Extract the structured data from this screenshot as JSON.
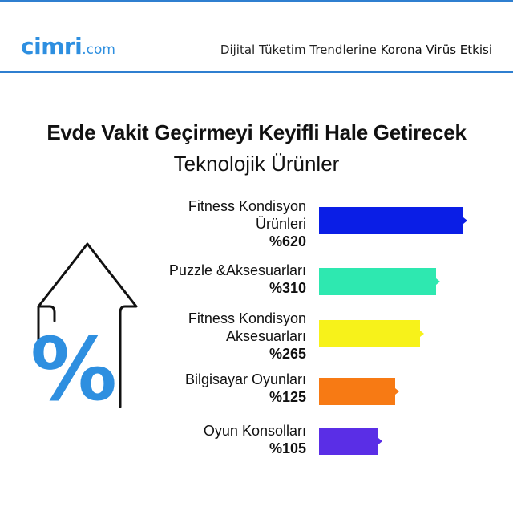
{
  "header": {
    "logo_main": "cimri",
    "logo_domain": ".com",
    "subtitle_normal": "Dijital Tüketim Trendlerine ",
    "subtitle_strong": "Korona Virüs Etkisi"
  },
  "colors": {
    "brand_blue": "#2e8fe0",
    "header_line": "#2f7fd0"
  },
  "icon": {
    "name": "percent-up-arrow-icon",
    "symbol": "%"
  },
  "chart_data": {
    "type": "bar",
    "orientation": "horizontal",
    "title": "Evde Vakit Geçirmeyi Keyifli Hale Getirecek",
    "subtitle": "Teknolojik Ürünler",
    "categories": [
      "Fitness Kondisyon Ürünleri",
      "Puzzle &Aksesuarları",
      "Fitness Kondisyon Aksesuarları",
      "Bilgisayar Oyunları",
      "Oyun Konsolları"
    ],
    "category_lines": [
      [
        "Fitness Kondisyon",
        "Ürünleri"
      ],
      [
        "Puzzle &Aksesuarları"
      ],
      [
        "Fitness Kondisyon",
        "Aksesuarları"
      ],
      [
        "Bilgisayar Oyunları"
      ],
      [
        "Oyun Konsolları"
      ]
    ],
    "values": [
      620,
      310,
      265,
      125,
      105
    ],
    "value_labels": [
      "%620",
      "%310",
      "%265",
      "%125",
      "%105"
    ],
    "bar_colors": [
      "#0a1ee6",
      "#2ee8b0",
      "#f7f21a",
      "#f77a14",
      "#5a2ee6"
    ]
  }
}
